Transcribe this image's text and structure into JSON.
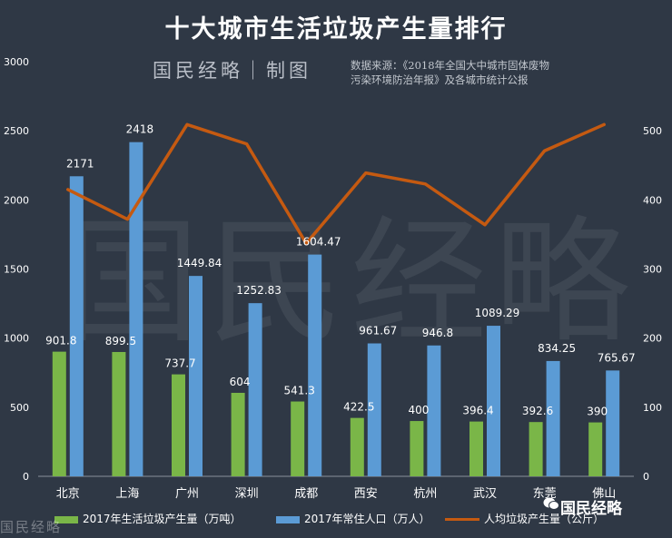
{
  "title": "十大城市生活垃圾产生量排行",
  "brand": "国民经略｜制图",
  "source_line1": "数据来源：《2018年全国大中城市固体废物",
  "source_line2": "污染环境防治年报》及各城市统计公报",
  "watermark": "国民经略",
  "corner_watermark": "国民经略",
  "logo_text": "国民经略",
  "colors": {
    "green": "#7ab648",
    "blue": "#5b9bd5",
    "orange": "#c55a11",
    "background": "#2f3845"
  },
  "chart_data": {
    "type": "bar",
    "categories": [
      "北京",
      "上海",
      "广州",
      "深圳",
      "成都",
      "西安",
      "杭州",
      "武汉",
      "东莞",
      "佛山"
    ],
    "series": [
      {
        "name": "2017年生活垃圾产生量（万吨）",
        "type": "bar",
        "axis": "left",
        "color": "#7ab648",
        "values": [
          901.8,
          899.5,
          737.7,
          604,
          541.3,
          422.5,
          400,
          396.4,
          392.6,
          390
        ],
        "labels": [
          "901.8",
          "899.5",
          "737.7",
          "604",
          "541.3",
          "422.5",
          "400",
          "396.4",
          "392.6",
          "390"
        ]
      },
      {
        "name": "2017年常住人口（万人）",
        "type": "bar",
        "axis": "left",
        "color": "#5b9bd5",
        "values": [
          2171,
          2418,
          1449.84,
          1252.83,
          1604.47,
          961.67,
          946.8,
          1089.29,
          834.25,
          765.67
        ],
        "labels": [
          "2171",
          "2418",
          "1449.84",
          "1252.83",
          "1604.47",
          "961.67",
          "946.8",
          "1089.29",
          "834.25",
          "765.67"
        ]
      },
      {
        "name": "人均垃圾产生量（公斤）",
        "type": "line",
        "axis": "right",
        "color": "#c55a11",
        "values": [
          415,
          372,
          509,
          481,
          337,
          439,
          423,
          364,
          471,
          509
        ]
      }
    ],
    "y_left": {
      "min": 0,
      "max": 3000,
      "ticks": [
        0,
        500,
        1000,
        1500,
        2000,
        2500,
        3000
      ]
    },
    "y_right": {
      "min": 0,
      "max": 600,
      "ticks": [
        0,
        100,
        200,
        300,
        400,
        500
      ]
    },
    "grid": false,
    "legend_position": "bottom"
  }
}
